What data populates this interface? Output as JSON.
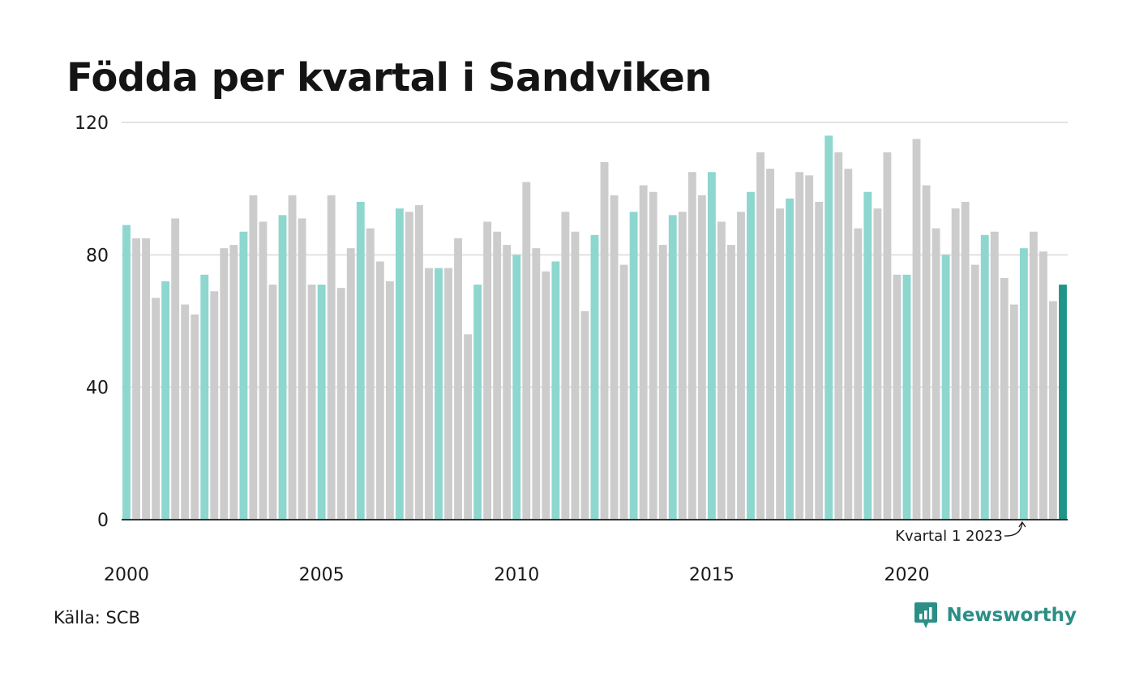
{
  "title": "Födda per kvartal i Sandviken",
  "source": "Källa: SCB",
  "brand": "Newsworthy",
  "annotation": "Kvartal 1 2023",
  "colors": {
    "highlight": "#8dd7cf",
    "regular": "#cccccc",
    "latest": "#1f9489",
    "grid": "#e2e2e2",
    "axis": "#333333"
  },
  "chart_data": {
    "type": "bar",
    "ylim": [
      0,
      120
    ],
    "yticks": [
      "0",
      "40",
      "80",
      "120"
    ],
    "xtick_labels": [
      "2000",
      "2005",
      "2010",
      "2015",
      "2020"
    ],
    "grid": true,
    "start": "2000 Q1",
    "values": [
      89,
      85,
      85,
      67,
      72,
      91,
      65,
      62,
      74,
      69,
      82,
      83,
      87,
      98,
      90,
      71,
      92,
      98,
      91,
      71,
      71,
      98,
      70,
      82,
      96,
      88,
      78,
      72,
      94,
      93,
      95,
      76,
      76,
      76,
      85,
      56,
      71,
      90,
      87,
      83,
      80,
      102,
      82,
      75,
      78,
      93,
      87,
      63,
      86,
      108,
      98,
      77,
      93,
      101,
      99,
      83,
      92,
      93,
      105,
      98,
      105,
      90,
      83,
      93,
      99,
      111,
      106,
      94,
      97,
      105,
      104,
      96,
      116,
      111,
      106,
      88,
      99,
      94,
      111,
      74,
      74,
      115,
      101,
      88,
      80,
      94,
      96,
      77,
      86,
      87,
      73,
      65,
      82,
      87,
      81,
      66,
      71
    ]
  }
}
